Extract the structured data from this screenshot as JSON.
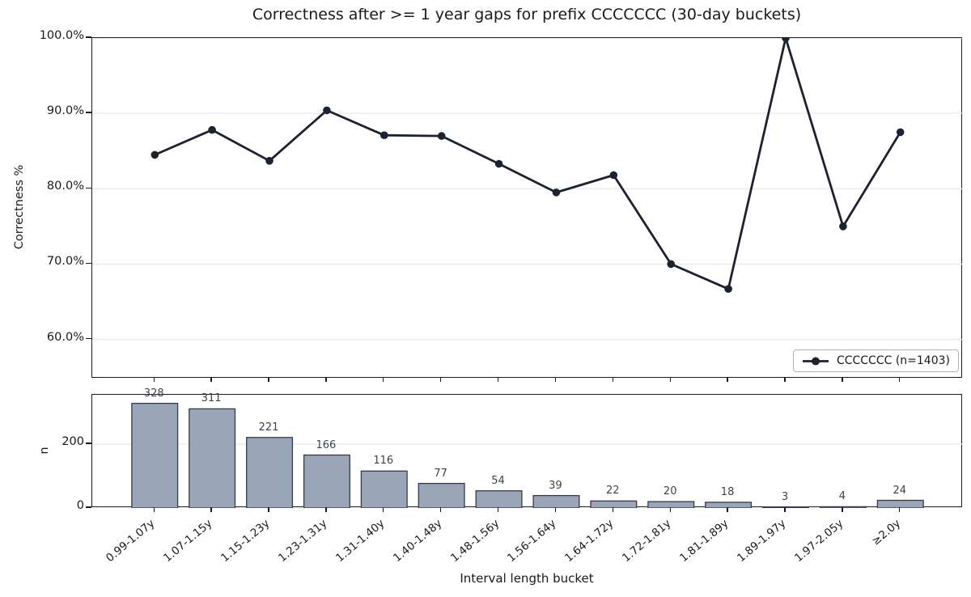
{
  "title": "Correctness after >= 1 year gaps for prefix CCCCCCC (30-day buckets)",
  "colors": {
    "line": "#1c2230",
    "marker": "#1c2230",
    "bar_fill": "#9aa5b8",
    "bar_edge": "#333b4d",
    "grid": "#e9e9e9",
    "spine": "#1b1b1b",
    "tick_label": "#1a1a1a",
    "bar_value_label": "#3d434d",
    "legend_border": "#b3b3b3",
    "background": "#ffffff"
  },
  "chart_data": [
    {
      "type": "line",
      "title": "Correctness after >= 1 year gaps for prefix CCCCCCC (30-day buckets)",
      "xlabel": "",
      "ylabel": "Correctness %",
      "ylim": [
        54.8,
        100
      ],
      "grid": true,
      "legend_position": "lower right",
      "categories": [
        "0.99-1.07y",
        "1.07-1.15y",
        "1.15-1.23y",
        "1.23-1.31y",
        "1.31-1.40y",
        "1.40-1.48y",
        "1.48-1.56y",
        "1.56-1.64y",
        "1.64-1.72y",
        "1.72-1.81y",
        "1.81-1.89y",
        "1.89-1.97y",
        "1.97-2.05y",
        "≥2.0y"
      ],
      "yticks": [
        {
          "value": 60,
          "label": "60.0%"
        },
        {
          "value": 70,
          "label": "70.0%"
        },
        {
          "value": 80,
          "label": "80.0%"
        },
        {
          "value": 90,
          "label": "90.0%"
        },
        {
          "value": 100,
          "label": "100.0%"
        }
      ],
      "series": [
        {
          "name": "CCCCCCC (n=1403)",
          "values": [
            84.5,
            87.8,
            83.7,
            90.4,
            87.1,
            87.0,
            83.3,
            79.5,
            81.8,
            70.0,
            66.7,
            100.0,
            75.0,
            87.5
          ]
        }
      ]
    },
    {
      "type": "bar",
      "title": "",
      "xlabel": "Interval length bucket",
      "ylabel": "n",
      "ylim": [
        0,
        355
      ],
      "grid": true,
      "categories": [
        "0.99-1.07y",
        "1.07-1.15y",
        "1.15-1.23y",
        "1.23-1.31y",
        "1.31-1.40y",
        "1.40-1.48y",
        "1.48-1.56y",
        "1.56-1.64y",
        "1.64-1.72y",
        "1.72-1.81y",
        "1.81-1.89y",
        "1.89-1.97y",
        "1.97-2.05y",
        "≥2.0y"
      ],
      "values": [
        328,
        311,
        221,
        166,
        116,
        77,
        54,
        39,
        22,
        20,
        18,
        3,
        4,
        24
      ],
      "yticks": [
        {
          "value": 0,
          "label": "0"
        },
        {
          "value": 200,
          "label": "200"
        }
      ]
    }
  ]
}
